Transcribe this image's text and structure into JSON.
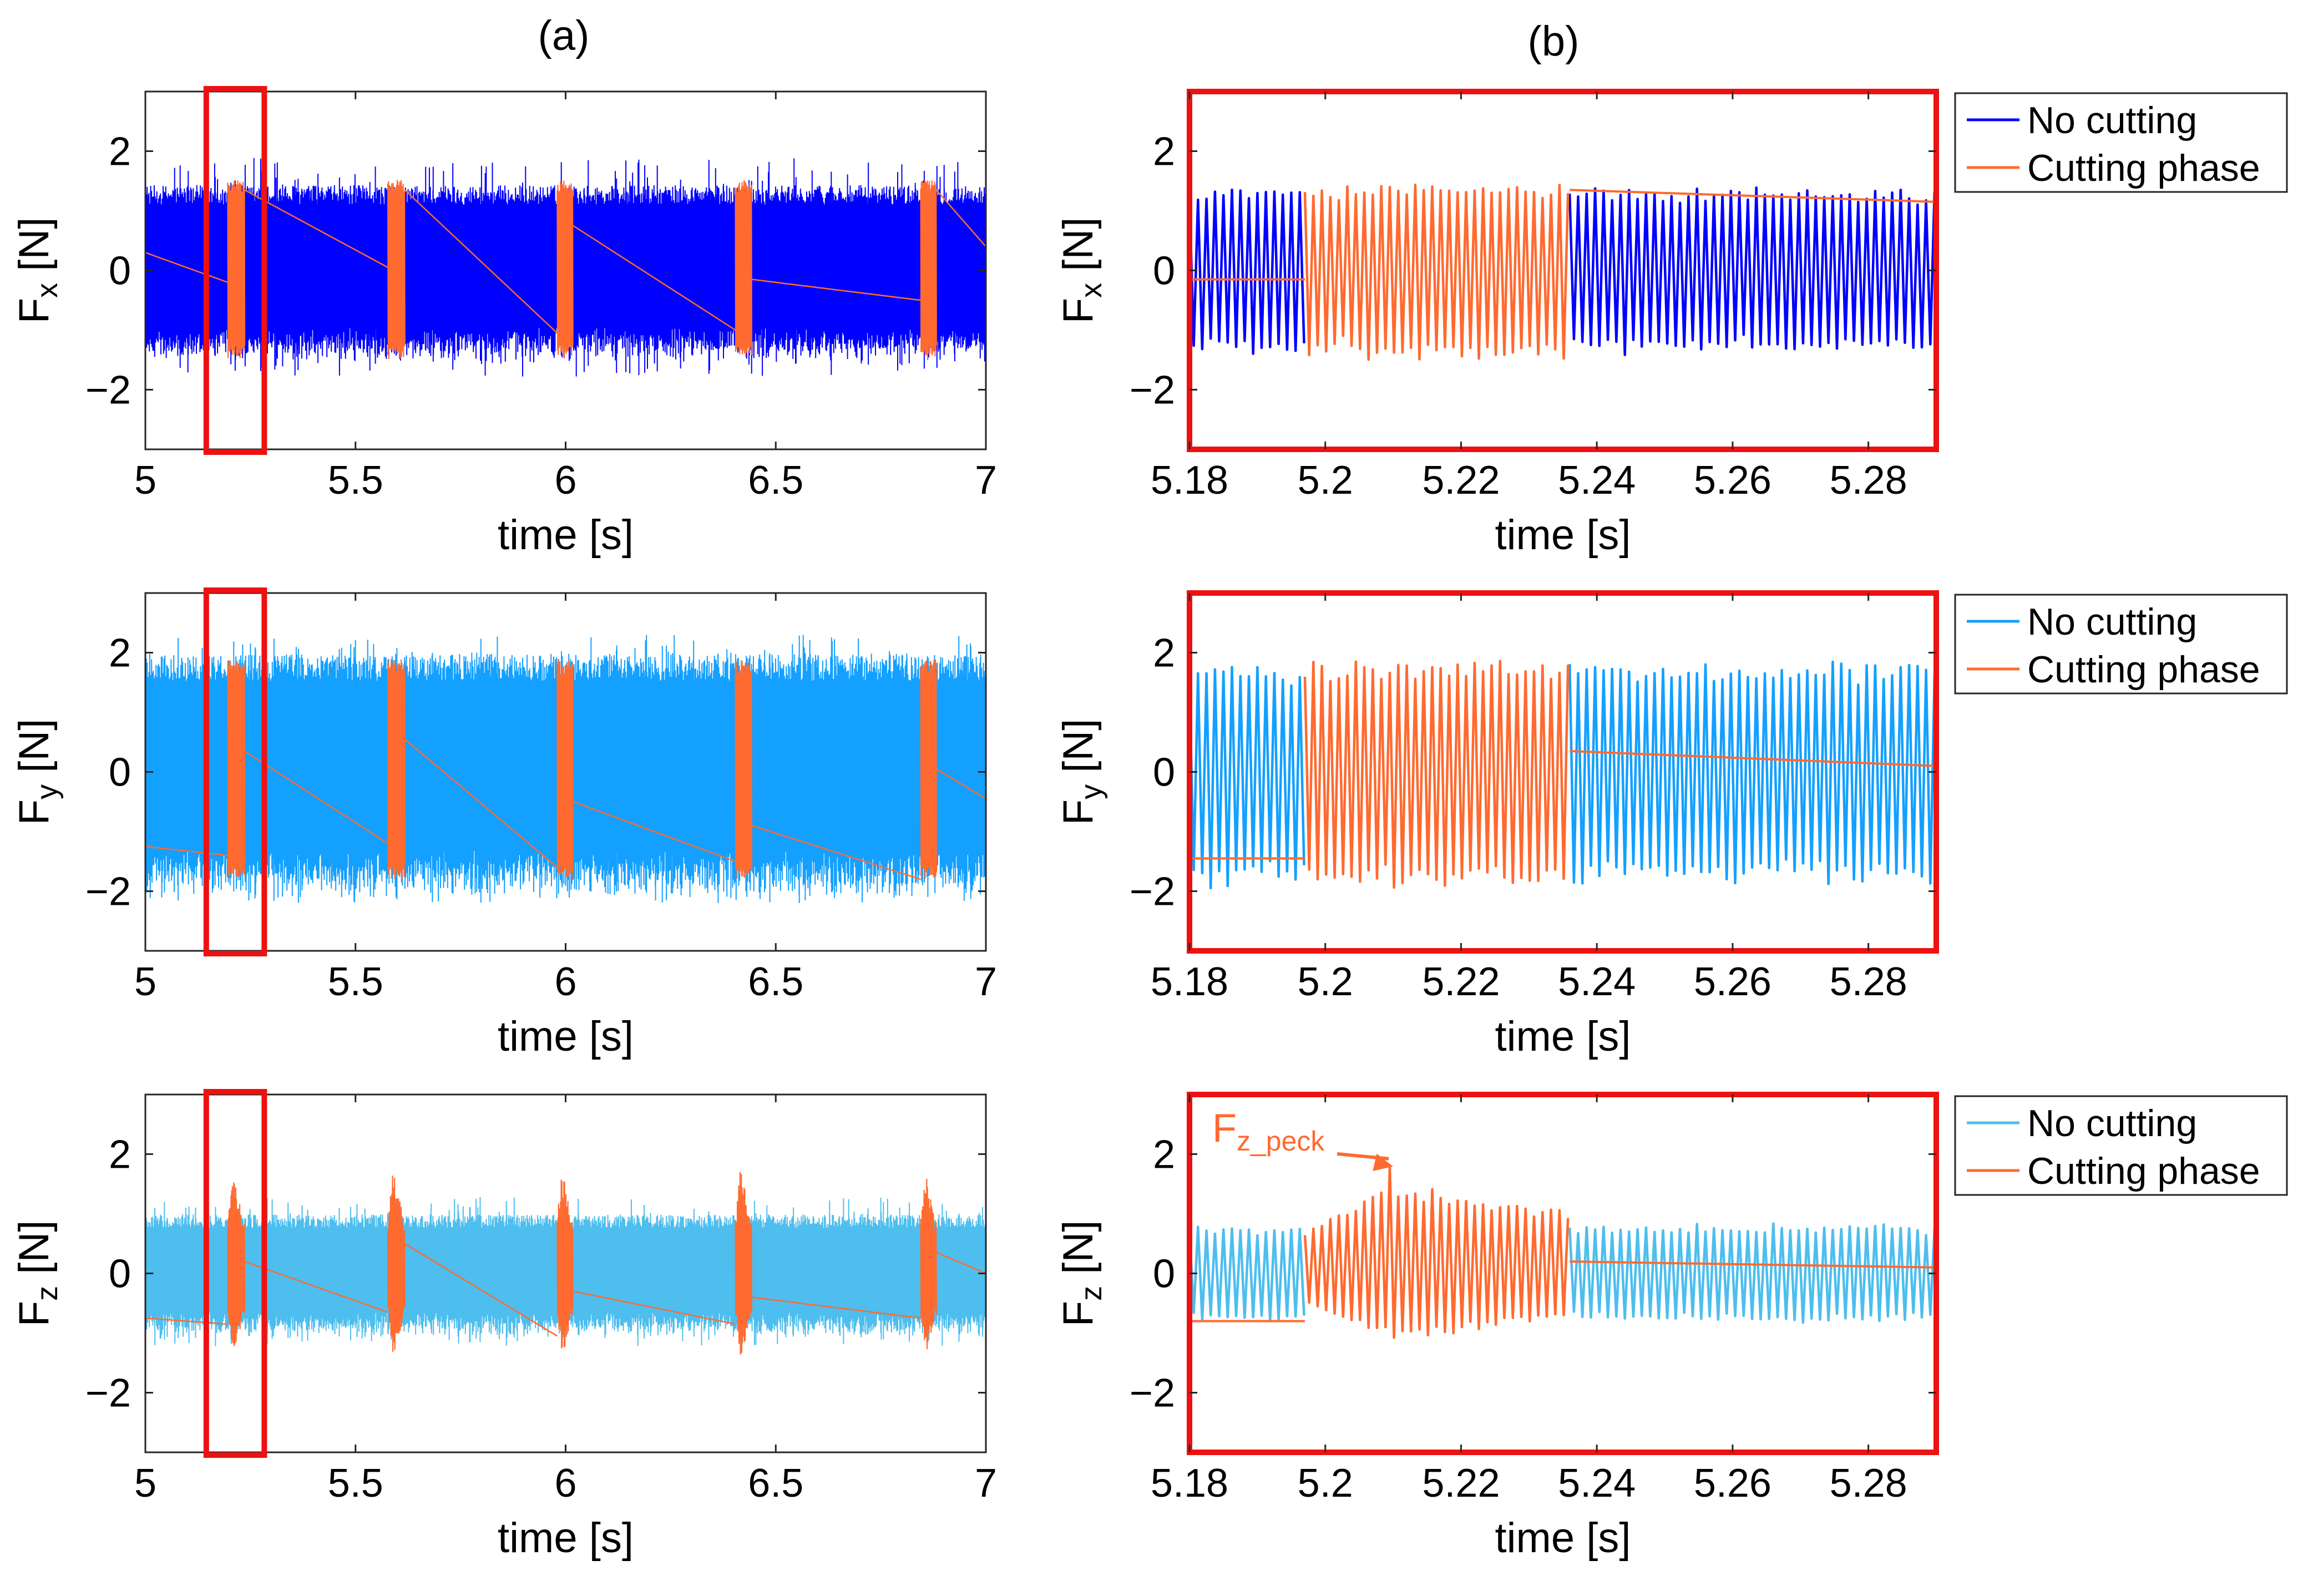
{
  "panel_labels": {
    "a": "(a)",
    "b": "(b)"
  },
  "colors": {
    "fx_nocut": "#0000ff",
    "fy_nocut": "#14a0ff",
    "fz_nocut": "#4dbeee",
    "cutting": "#ff6a30",
    "highlight": "#ee1111"
  },
  "legend": {
    "no_cutting": "No cutting",
    "cutting_phase": "Cutting phase"
  },
  "annotation": {
    "main": "F",
    "sub": "z_peck"
  },
  "chart_data": [
    {
      "type": "line",
      "id": "a1",
      "title": "",
      "xlabel": "time [s]",
      "ylabel_main": "F",
      "ylabel_sub": "x",
      "ylabel_unit": "[N]",
      "xlim": [
        5,
        7
      ],
      "ylim": [
        -3,
        3
      ],
      "xticks": [
        5,
        5.5,
        6,
        6.5,
        7
      ],
      "xtick_labels": [
        "5",
        "5.5",
        "6",
        "6.5",
        "7"
      ],
      "yticks": [
        -2,
        0,
        2
      ],
      "ytick_labels": [
        "−2",
        "0",
        "2"
      ],
      "series": [
        {
          "name": "No cutting",
          "color_key": "fx_nocut",
          "kind": "noise",
          "amp": 1.3,
          "peak": 1.9,
          "freq": 400
        },
        {
          "name": "Cutting phase",
          "color_key": "cutting",
          "bursts": [
            [
              5.196,
              5.236
            ],
            [
              5.577,
              5.617
            ],
            [
              5.98,
              6.018
            ],
            [
              6.404,
              6.443
            ],
            [
              6.845,
              6.882
            ]
          ],
          "amp": 1.45,
          "peak": 1.6,
          "freq": 400,
          "segments": [
            [
              5.0,
              0.3,
              5.196,
              -0.2
            ],
            [
              5.236,
              1.35,
              5.577,
              0.05
            ],
            [
              5.617,
              1.35,
              5.98,
              -1.05
            ],
            [
              6.018,
              0.75,
              6.404,
              -1.0
            ],
            [
              6.443,
              -0.15,
              6.845,
              -0.5
            ],
            [
              6.882,
              1.35,
              7.0,
              0.4
            ]
          ]
        }
      ],
      "highlight_box": [
        5.145,
        5.283
      ]
    },
    {
      "type": "line",
      "id": "a2",
      "title": "",
      "xlabel": "time [s]",
      "ylabel_main": "F",
      "ylabel_sub": "y",
      "ylabel_unit": "[N]",
      "xlim": [
        5,
        7
      ],
      "ylim": [
        -3,
        3
      ],
      "xticks": [
        5,
        5.5,
        6,
        6.5,
        7
      ],
      "xtick_labels": [
        "5",
        "5.5",
        "6",
        "6.5",
        "7"
      ],
      "yticks": [
        -2,
        0,
        2
      ],
      "ytick_labels": [
        "−2",
        "0",
        "2"
      ],
      "series": [
        {
          "name": "No cutting",
          "color_key": "fy_nocut",
          "kind": "noise",
          "amp": 1.8,
          "peak": 2.3,
          "freq": 400
        },
        {
          "name": "Cutting phase",
          "color_key": "cutting",
          "bursts": [
            [
              5.196,
              5.236
            ],
            [
              5.577,
              5.617
            ],
            [
              5.98,
              6.018
            ],
            [
              6.404,
              6.443
            ],
            [
              6.845,
              6.882
            ]
          ],
          "amp": 1.8,
          "peak": 2.1,
          "freq": 400,
          "segments": [
            [
              5.0,
              -1.25,
              5.196,
              -1.4
            ],
            [
              5.236,
              0.35,
              5.577,
              -1.2
            ],
            [
              5.617,
              0.55,
              5.98,
              -1.6
            ],
            [
              6.018,
              -0.5,
              6.404,
              -1.5
            ],
            [
              6.443,
              -0.9,
              6.845,
              -1.8
            ],
            [
              6.882,
              0.05,
              7.0,
              -0.45
            ]
          ]
        }
      ],
      "highlight_box": [
        5.145,
        5.283
      ]
    },
    {
      "type": "line",
      "id": "a3",
      "title": "",
      "xlabel": "time [s]",
      "ylabel_main": "F",
      "ylabel_sub": "z",
      "ylabel_unit": "[N]",
      "xlim": [
        5,
        7
      ],
      "ylim": [
        -3,
        3
      ],
      "xticks": [
        5,
        5.5,
        6,
        6.5,
        7
      ],
      "xtick_labels": [
        "5",
        "5.5",
        "6",
        "6.5",
        "7"
      ],
      "yticks": [
        -2,
        0,
        2
      ],
      "ytick_labels": [
        "−2",
        "0",
        "2"
      ],
      "series": [
        {
          "name": "No cutting",
          "color_key": "fz_nocut",
          "kind": "noise",
          "amp": 0.9,
          "peak": 1.3,
          "freq": 400
        },
        {
          "name": "Cutting phase",
          "color_key": "cutting",
          "bursts": [
            [
              5.196,
              5.236
            ],
            [
              5.577,
              5.617
            ],
            [
              5.98,
              6.018
            ],
            [
              6.404,
              6.443
            ],
            [
              6.845,
              6.882
            ]
          ],
          "amp": 0.9,
          "peak": 1.7,
          "freq": 400,
          "segments": [
            [
              5.0,
              -0.75,
              5.196,
              -0.85
            ],
            [
              5.236,
              0.2,
              5.577,
              -0.65
            ],
            [
              5.617,
              0.5,
              5.98,
              -1.05
            ],
            [
              6.018,
              -0.3,
              6.404,
              -0.85
            ],
            [
              6.443,
              -0.4,
              6.845,
              -0.75
            ],
            [
              6.882,
              0.35,
              7.0,
              0.0
            ]
          ]
        }
      ],
      "highlight_box": [
        5.145,
        5.283
      ]
    },
    {
      "type": "line",
      "id": "b1",
      "title": "",
      "xlabel": "time [s]",
      "ylabel_main": "F",
      "ylabel_sub": "x",
      "ylabel_unit": "[N]",
      "xlim": [
        5.18,
        5.29
      ],
      "ylim": [
        -3,
        3
      ],
      "xticks": [
        5.18,
        5.2,
        5.22,
        5.24,
        5.26,
        5.28
      ],
      "xtick_labels": [
        "5.18",
        "5.2",
        "5.22",
        "5.24",
        "5.26",
        "5.28"
      ],
      "yticks": [
        -2,
        0,
        2
      ],
      "ytick_labels": [
        "−2",
        "0",
        "2"
      ],
      "series": [
        {
          "name": "No cutting",
          "color_key": "fx_nocut",
          "ranges": [
            [
              5.18,
              5.197
            ],
            [
              5.236,
              5.29
            ]
          ],
          "amp": 1.35,
          "period": 0.00125
        },
        {
          "name": "Cutting phase",
          "color_key": "cutting",
          "ranges": [
            [
              5.197,
              5.236
            ]
          ],
          "amp": 1.45,
          "period": 0.00125,
          "segments": [
            [
              5.18,
              -0.15,
              5.197,
              -0.15
            ],
            [
              5.236,
              1.35,
              5.29,
              1.15
            ]
          ]
        }
      ],
      "legend_colors": [
        "fx_nocut",
        "cutting"
      ]
    },
    {
      "type": "line",
      "id": "b2",
      "title": "",
      "xlabel": "time [s]",
      "ylabel_main": "F",
      "ylabel_sub": "y",
      "ylabel_unit": "[N]",
      "xlim": [
        5.18,
        5.29
      ],
      "ylim": [
        -3,
        3
      ],
      "xticks": [
        5.18,
        5.2,
        5.22,
        5.24,
        5.26,
        5.28
      ],
      "xtick_labels": [
        "5.18",
        "5.2",
        "5.22",
        "5.24",
        "5.26",
        "5.28"
      ],
      "yticks": [
        -2,
        0,
        2
      ],
      "ytick_labels": [
        "−2",
        "0",
        "2"
      ],
      "series": [
        {
          "name": "No cutting",
          "color_key": "fy_nocut",
          "ranges": [
            [
              5.18,
              5.197
            ],
            [
              5.236,
              5.29
            ]
          ],
          "amp": 1.8,
          "period": 0.00125
        },
        {
          "name": "Cutting phase",
          "color_key": "cutting",
          "ranges": [
            [
              5.197,
              5.236
            ]
          ],
          "amp": 1.85,
          "period": 0.00125,
          "segments": [
            [
              5.18,
              -1.45,
              5.197,
              -1.45
            ],
            [
              5.236,
              0.35,
              5.29,
              0.1
            ]
          ]
        }
      ],
      "legend_colors": [
        "fy_nocut",
        "cutting"
      ]
    },
    {
      "type": "line",
      "id": "b3",
      "title": "",
      "xlabel": "time [s]",
      "ylabel_main": "F",
      "ylabel_sub": "z",
      "ylabel_unit": "[N]",
      "xlim": [
        5.18,
        5.29
      ],
      "ylim": [
        -3,
        3
      ],
      "xticks": [
        5.18,
        5.2,
        5.22,
        5.24,
        5.26,
        5.28
      ],
      "xtick_labels": [
        "5.18",
        "5.2",
        "5.22",
        "5.24",
        "5.26",
        "5.28"
      ],
      "yticks": [
        -2,
        0,
        2
      ],
      "ytick_labels": [
        "−2",
        "0",
        "2"
      ],
      "series": [
        {
          "name": "No cutting",
          "color_key": "fz_nocut",
          "ranges": [
            [
              5.18,
              5.197
            ],
            [
              5.236,
              5.29
            ]
          ],
          "amp": 0.8,
          "period": 0.00125
        },
        {
          "name": "Cutting phase",
          "color_key": "cutting",
          "ranges": [
            [
              5.197,
              5.236
            ]
          ],
          "amp": 0.8,
          "period": 0.00125,
          "peak": [
            5.21,
            1.7
          ],
          "segments": [
            [
              5.18,
              -0.8,
              5.197,
              -0.8
            ],
            [
              5.236,
              0.2,
              5.29,
              0.1
            ]
          ]
        }
      ],
      "legend_colors": [
        "fz_nocut",
        "cutting"
      ],
      "annotation_target": [
        5.21,
        1.7
      ]
    }
  ]
}
